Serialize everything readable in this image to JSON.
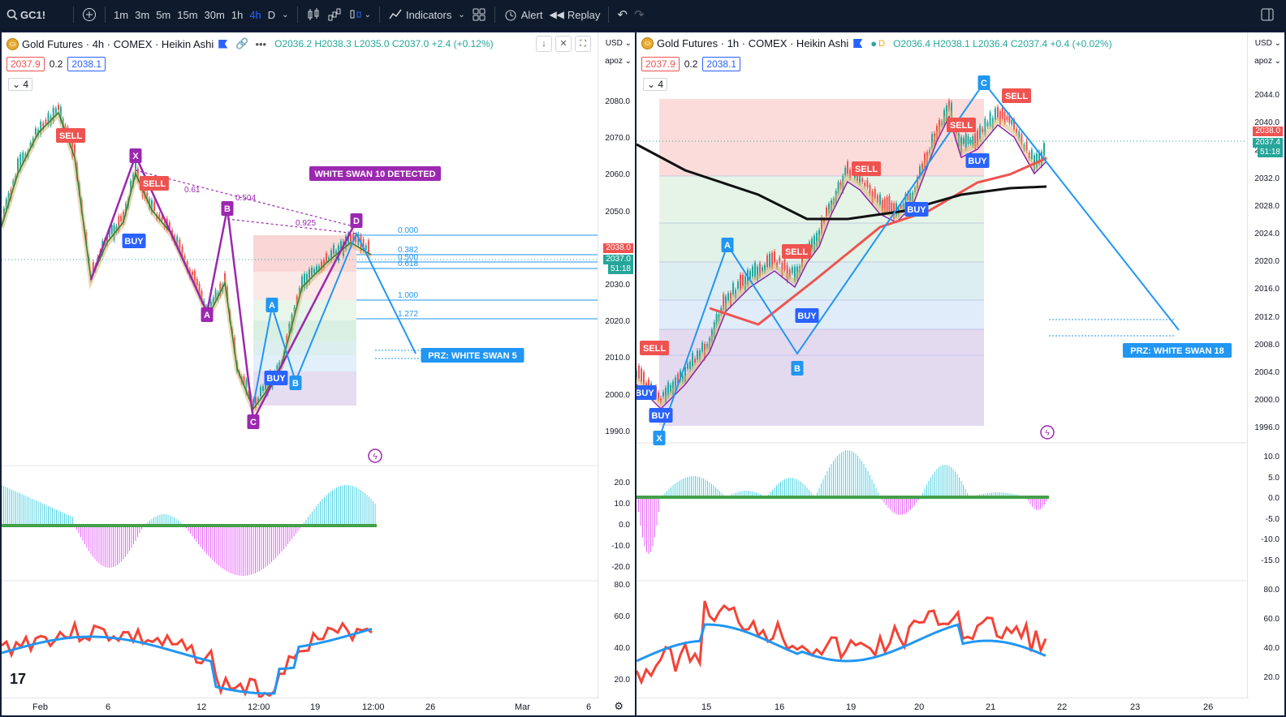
{
  "toolbar": {
    "symbol": "GC1!",
    "timeframes": [
      "1m",
      "3m",
      "5m",
      "15m",
      "30m",
      "1h",
      "4h",
      "D"
    ],
    "active_timeframe": "4h",
    "indicators_label": "Indicators",
    "alert_label": "Alert",
    "replay_label": "Replay"
  },
  "left": {
    "title": "Gold Futures · 4h · COMEX · Heikin Ashi",
    "ohlc": "O2036.2 H2038.3 L2035.0 C2037.0 +2.4 (+0.12%)",
    "bid": "2037.9",
    "spread": "0.2",
    "ask": "2038.1",
    "collapse": "4",
    "currency": "USD",
    "scale_mode": "apoz",
    "price_ticks": [
      "2080.0",
      "2070.0",
      "2060.0",
      "2050.0",
      "2040.0",
      "2030.0",
      "2020.0",
      "2010.0",
      "2000.0",
      "1990.0"
    ],
    "price_tag": "2038.0",
    "last_tag": "2037.0",
    "timer_tag": "51:18",
    "osc_ticks": [
      "20.0",
      "10.0",
      "0.0",
      "-10.0",
      "-20.0"
    ],
    "rsi_ticks": [
      "80.0",
      "60.0",
      "40.0",
      "20.0"
    ],
    "x_labels": [
      "Feb",
      "6",
      "12",
      "12:00",
      "19",
      "12:00",
      "26",
      "Mar",
      "6"
    ],
    "fib_levels": [
      "0.000",
      "0.382",
      "0.500",
      "0.618",
      "1.000",
      "1.272"
    ],
    "pattern_label": "WHITE SWAN 10 DETECTED",
    "prz_label": "PRZ: WHITE SWAN 5",
    "ratios": [
      "0.61",
      "0.504",
      "0.925"
    ],
    "points": {
      "x": "X",
      "a": "A",
      "b": "B",
      "c": "C",
      "d": "D"
    },
    "buy": "BUY",
    "sell": "SELL"
  },
  "right": {
    "title": "Gold Futures · 1h · COMEX · Heikin Ashi",
    "ohlc": "O2036.4 H2038.1 L2036.4 C2037.4 +0.4 (+0.02%)",
    "bid": "2037.9",
    "spread": "0.2",
    "ask": "2038.1",
    "collapse": "4",
    "currency": "USD",
    "scale_mode": "apoz",
    "price_ticks": [
      "2044.0",
      "2040.0",
      "2036.0",
      "2032.0",
      "2028.0",
      "2024.0",
      "2020.0",
      "2016.0",
      "2012.0",
      "2008.0",
      "2004.0",
      "2000.0",
      "1996.0"
    ],
    "price_tag": "2038.0",
    "last_tag": "2037.4",
    "timer_tag": "51:18",
    "osc_ticks": [
      "10.0",
      "5.0",
      "0.0",
      "-5.0",
      "-10.0",
      "-15.0"
    ],
    "rsi_ticks": [
      "80.0",
      "60.0",
      "40.0",
      "20.0"
    ],
    "x_labels": [
      "15",
      "16",
      "19",
      "20",
      "21",
      "22",
      "23",
      "26"
    ],
    "prz_label": "PRZ: WHITE SWAN 18",
    "points": {
      "x": "X",
      "a": "A",
      "b": "B",
      "c": "C"
    },
    "buy": "BUY",
    "sell": "SELL"
  },
  "colors": {
    "accent": "#2962ff",
    "pattern_purple": "#9c27b0",
    "pattern_blue": "#2196f3",
    "up": "#26a69a",
    "down": "#ef5350"
  }
}
